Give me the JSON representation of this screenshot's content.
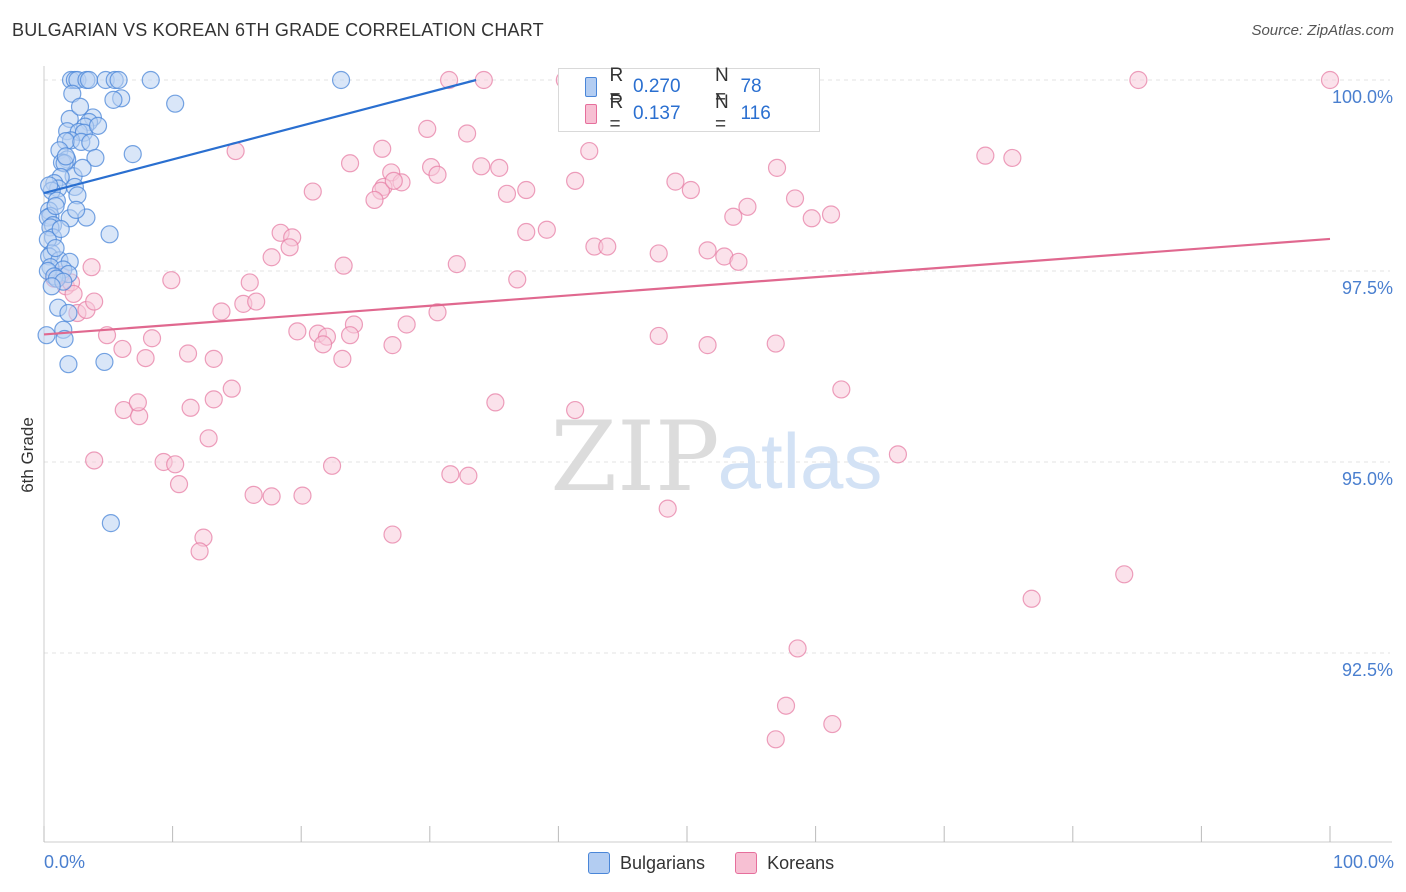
{
  "header": {
    "title": "BULGARIAN VS KOREAN 6TH GRADE CORRELATION CHART",
    "source": "Source: ZipAtlas.com"
  },
  "watermark": {
    "zip": "ZIP",
    "atlas": "atlas"
  },
  "legend": {
    "r_label": "R =",
    "n_label": "N =",
    "rows": [
      {
        "name": "Bulgarians",
        "r": "0.270",
        "n": "78",
        "color": "#4a86d8",
        "fill": "#b3cdf2"
      },
      {
        "name": "Koreans",
        "r": "0.137",
        "n": "116",
        "color": "#e66f9c",
        "fill": "#f7c0d3"
      }
    ]
  },
  "colors": {
    "blue_stroke": "#4a86d8",
    "blue_fill": "#b9d2f3",
    "blue_line": "#2a6fd0",
    "pink_stroke": "#e77fa5",
    "pink_fill": "#f8cbdb",
    "pink_line": "#e0688f",
    "tick_text": "#4a7fcf",
    "grid": "#e3e3e3"
  },
  "chart_data": {
    "type": "scatter",
    "title": "BULGARIAN VS KOREAN 6TH GRADE CORRELATION CHART",
    "xlabel": "",
    "ylabel": "6th Grade",
    "xlim": [
      0,
      100
    ],
    "ylim": [
      90.0,
      100.2
    ],
    "x_tick_labels": [
      "0.0%",
      "100.0%"
    ],
    "y_ticks": [
      {
        "value": 100.0,
        "label": "100.0%"
      },
      {
        "value": 97.5,
        "label": "97.5%"
      },
      {
        "value": 95.0,
        "label": "95.0%"
      },
      {
        "value": 92.5,
        "label": "92.5%"
      }
    ],
    "series": [
      {
        "name": "Bulgarians",
        "r": 0.27,
        "n": 78,
        "trend": {
          "x": [
            0.0,
            33.6
          ],
          "y": [
            98.52,
            100.0
          ]
        },
        "points": [
          [
            2.1,
            100.0
          ],
          [
            2.4,
            100.0
          ],
          [
            2.6,
            100.0
          ],
          [
            3.3,
            100.0
          ],
          [
            3.5,
            100.0
          ],
          [
            4.8,
            100.0
          ],
          [
            5.5,
            100.0
          ],
          [
            5.8,
            100.0
          ],
          [
            8.3,
            100.0
          ],
          [
            23.1,
            100.0
          ],
          [
            2.2,
            99.82
          ],
          [
            6.0,
            99.76
          ],
          [
            5.4,
            99.74
          ],
          [
            10.2,
            99.69
          ],
          [
            3.8,
            99.51
          ],
          [
            2.0,
            99.49
          ],
          [
            3.5,
            99.45
          ],
          [
            3.2,
            99.39
          ],
          [
            1.8,
            99.33
          ],
          [
            2.7,
            99.32
          ],
          [
            3.1,
            99.31
          ],
          [
            2.1,
            99.21
          ],
          [
            1.7,
            99.2
          ],
          [
            2.9,
            99.19
          ],
          [
            3.6,
            99.18
          ],
          [
            1.2,
            99.08
          ],
          [
            6.9,
            99.03
          ],
          [
            4.0,
            98.98
          ],
          [
            1.8,
            98.96
          ],
          [
            1.4,
            98.92
          ],
          [
            1.6,
            98.91
          ],
          [
            2.3,
            98.74
          ],
          [
            1.3,
            98.73
          ],
          [
            0.8,
            98.65
          ],
          [
            2.4,
            98.6
          ],
          [
            1.1,
            98.58
          ],
          [
            0.6,
            98.55
          ],
          [
            2.6,
            98.49
          ],
          [
            1.0,
            98.42
          ],
          [
            0.4,
            98.29
          ],
          [
            0.5,
            98.22
          ],
          [
            0.3,
            98.2
          ],
          [
            3.3,
            98.2
          ],
          [
            2.0,
            98.19
          ],
          [
            0.7,
            98.1
          ],
          [
            0.5,
            98.07
          ],
          [
            5.1,
            97.98
          ],
          [
            0.7,
            97.94
          ],
          [
            0.3,
            97.91
          ],
          [
            0.6,
            97.73
          ],
          [
            0.4,
            97.69
          ],
          [
            1.2,
            97.64
          ],
          [
            2.0,
            97.62
          ],
          [
            0.5,
            97.55
          ],
          [
            1.5,
            97.52
          ],
          [
            0.3,
            97.5
          ],
          [
            1.9,
            97.46
          ],
          [
            0.8,
            97.43
          ],
          [
            1.0,
            97.4
          ],
          [
            1.5,
            97.36
          ],
          [
            1.1,
            97.02
          ],
          [
            1.9,
            96.95
          ],
          [
            1.5,
            96.73
          ],
          [
            0.2,
            96.66
          ],
          [
            1.6,
            96.61
          ],
          [
            4.7,
            96.31
          ],
          [
            1.9,
            96.28
          ],
          [
            5.2,
            94.2
          ],
          [
            0.4,
            98.62
          ],
          [
            0.9,
            98.35
          ],
          [
            1.3,
            98.05
          ],
          [
            2.8,
            99.65
          ],
          [
            4.2,
            99.4
          ],
          [
            0.6,
            97.3
          ],
          [
            3.0,
            98.85
          ],
          [
            1.7,
            99.0
          ],
          [
            0.9,
            97.8
          ],
          [
            2.5,
            98.3
          ]
        ]
      },
      {
        "name": "Koreans",
        "r": 0.137,
        "n": 116,
        "trend": {
          "x": [
            0.0,
            100.0
          ],
          "y": [
            96.67,
            97.92
          ]
        },
        "points": [
          [
            31.5,
            100.0
          ],
          [
            34.2,
            100.0
          ],
          [
            40.5,
            100.0
          ],
          [
            41.0,
            100.0
          ],
          [
            51.6,
            100.0
          ],
          [
            85.1,
            100.0
          ],
          [
            100.0,
            100.0
          ],
          [
            32.9,
            99.3
          ],
          [
            29.8,
            99.36
          ],
          [
            14.9,
            99.07
          ],
          [
            23.8,
            98.91
          ],
          [
            26.3,
            99.1
          ],
          [
            34.0,
            98.87
          ],
          [
            35.4,
            98.85
          ],
          [
            42.4,
            99.07
          ],
          [
            30.1,
            98.86
          ],
          [
            27.0,
            98.79
          ],
          [
            26.4,
            98.6
          ],
          [
            26.2,
            98.55
          ],
          [
            27.8,
            98.66
          ],
          [
            30.6,
            98.76
          ],
          [
            27.2,
            98.68
          ],
          [
            20.9,
            98.54
          ],
          [
            25.7,
            98.43
          ],
          [
            36.0,
            98.51
          ],
          [
            37.5,
            98.56
          ],
          [
            41.3,
            98.68
          ],
          [
            49.1,
            98.67
          ],
          [
            50.3,
            98.56
          ],
          [
            53.6,
            98.21
          ],
          [
            54.7,
            98.34
          ],
          [
            57.0,
            98.85
          ],
          [
            58.4,
            98.45
          ],
          [
            59.7,
            98.19
          ],
          [
            61.2,
            98.24
          ],
          [
            73.2,
            99.01
          ],
          [
            75.3,
            98.98
          ],
          [
            18.4,
            98.0
          ],
          [
            19.3,
            97.94
          ],
          [
            19.1,
            97.81
          ],
          [
            17.7,
            97.68
          ],
          [
            37.5,
            98.01
          ],
          [
            39.1,
            98.04
          ],
          [
            42.8,
            97.82
          ],
          [
            43.8,
            97.82
          ],
          [
            47.8,
            97.73
          ],
          [
            51.6,
            97.77
          ],
          [
            52.9,
            97.69
          ],
          [
            54.0,
            97.62
          ],
          [
            23.3,
            97.57
          ],
          [
            32.1,
            97.59
          ],
          [
            36.8,
            97.39
          ],
          [
            9.9,
            97.38
          ],
          [
            16.0,
            97.35
          ],
          [
            3.7,
            97.55
          ],
          [
            1.7,
            97.3
          ],
          [
            2.1,
            97.35
          ],
          [
            15.5,
            97.07
          ],
          [
            16.5,
            97.1
          ],
          [
            2.6,
            96.95
          ],
          [
            3.3,
            96.99
          ],
          [
            13.8,
            96.97
          ],
          [
            24.1,
            96.8
          ],
          [
            28.2,
            96.8
          ],
          [
            30.6,
            96.96
          ],
          [
            19.7,
            96.71
          ],
          [
            21.3,
            96.68
          ],
          [
            22.0,
            96.64
          ],
          [
            23.8,
            96.66
          ],
          [
            21.7,
            96.54
          ],
          [
            27.1,
            96.53
          ],
          [
            4.9,
            96.66
          ],
          [
            8.4,
            96.62
          ],
          [
            6.1,
            96.48
          ],
          [
            11.2,
            96.42
          ],
          [
            13.2,
            96.35
          ],
          [
            7.9,
            96.36
          ],
          [
            23.2,
            96.35
          ],
          [
            47.8,
            96.65
          ],
          [
            51.6,
            96.53
          ],
          [
            56.9,
            96.55
          ],
          [
            62.0,
            95.95
          ],
          [
            2.3,
            97.2
          ],
          [
            1.3,
            97.45
          ],
          [
            3.9,
            97.1
          ],
          [
            6.2,
            95.68
          ],
          [
            7.4,
            95.6
          ],
          [
            7.3,
            95.78
          ],
          [
            14.6,
            95.96
          ],
          [
            13.2,
            95.82
          ],
          [
            11.4,
            95.71
          ],
          [
            35.1,
            95.78
          ],
          [
            41.3,
            95.68
          ],
          [
            12.8,
            95.31
          ],
          [
            9.3,
            95.0
          ],
          [
            10.2,
            94.97
          ],
          [
            3.9,
            95.02
          ],
          [
            22.4,
            94.95
          ],
          [
            31.6,
            94.84
          ],
          [
            33.0,
            94.82
          ],
          [
            16.3,
            94.57
          ],
          [
            10.5,
            94.71
          ],
          [
            17.7,
            94.55
          ],
          [
            20.1,
            94.56
          ],
          [
            27.1,
            94.05
          ],
          [
            12.4,
            94.01
          ],
          [
            12.1,
            93.83
          ],
          [
            48.5,
            94.39
          ],
          [
            66.4,
            95.1
          ],
          [
            84.0,
            93.53
          ],
          [
            76.8,
            93.21
          ],
          [
            58.6,
            92.56
          ],
          [
            57.7,
            91.81
          ],
          [
            61.3,
            91.57
          ],
          [
            56.9,
            91.37
          ],
          [
            0.8,
            97.4
          ]
        ]
      }
    ]
  }
}
